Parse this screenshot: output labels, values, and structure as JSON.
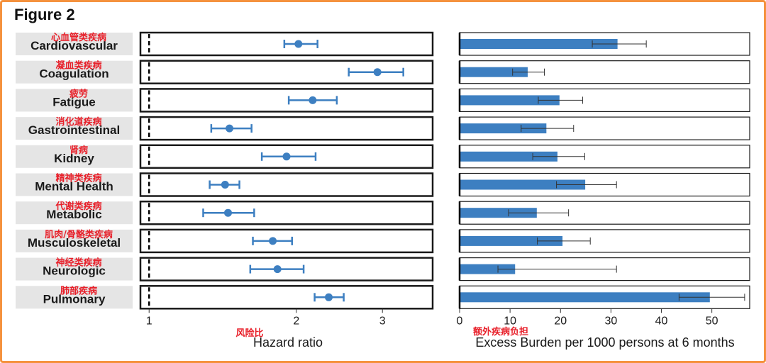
{
  "figure_title": "Figure 2",
  "colors": {
    "accent": "#3d7fc1",
    "label_bg": "#e5e5e5",
    "annotation": "#e8202a",
    "frame": "#f5923e",
    "panel_border": "#1a1a1a"
  },
  "chart_data": [
    {
      "type": "scatter",
      "subtype": "forest-plot",
      "categories": [
        "Cardiovascular",
        "Coagulation",
        "Fatigue",
        "Gastrointestinal",
        "Kidney",
        "Mental Health",
        "Metabolic",
        "Musculoskeletal",
        "Neurologic",
        "Pulmonary"
      ],
      "categories_cn": [
        "心血管类疾病",
        "凝血类疾病",
        "疲劳",
        "消化道疾病",
        "肾病",
        "精神类疾病",
        "代谢类疾病",
        "肌肉/骨骼类疾病",
        "神经类疾病",
        "肺部疾病"
      ],
      "hr": [
        2.02,
        2.93,
        2.16,
        1.46,
        1.91,
        1.43,
        1.45,
        1.79,
        1.83,
        2.33
      ],
      "ci_low": [
        1.89,
        2.56,
        1.93,
        1.34,
        1.7,
        1.33,
        1.29,
        1.63,
        1.61,
        2.18
      ],
      "ci_high": [
        2.21,
        3.31,
        2.42,
        1.62,
        2.19,
        1.53,
        1.64,
        1.96,
        2.07,
        2.5
      ],
      "xlabel": "Hazard ratio",
      "xlabel_cn": "风险比",
      "x_scale": "log",
      "xlim": [
        0.96,
        3.8
      ],
      "xticks": [
        1,
        2,
        3
      ],
      "reference_line": 1
    },
    {
      "type": "bar",
      "orientation": "horizontal",
      "categories": [
        "Cardiovascular",
        "Coagulation",
        "Fatigue",
        "Gastrointestinal",
        "Kidney",
        "Mental Health",
        "Metabolic",
        "Musculoskeletal",
        "Neurologic",
        "Pulmonary"
      ],
      "values": [
        31.3,
        13.5,
        19.8,
        17.2,
        19.4,
        24.9,
        15.3,
        20.4,
        11.0,
        49.6
      ],
      "err_low": [
        26.3,
        10.5,
        15.6,
        12.2,
        14.5,
        19.2,
        9.7,
        15.4,
        7.6,
        43.5
      ],
      "err_high": [
        37.0,
        16.8,
        24.4,
        22.6,
        24.8,
        31.1,
        21.6,
        25.9,
        31.1,
        56.5
      ],
      "xlabel": "Excess Burden per 1000 persons at 6 months",
      "xlabel_cn": "额外疾病负担",
      "xlim": [
        0,
        57.5
      ],
      "xticks": [
        0,
        10,
        20,
        30,
        40,
        50
      ]
    }
  ]
}
